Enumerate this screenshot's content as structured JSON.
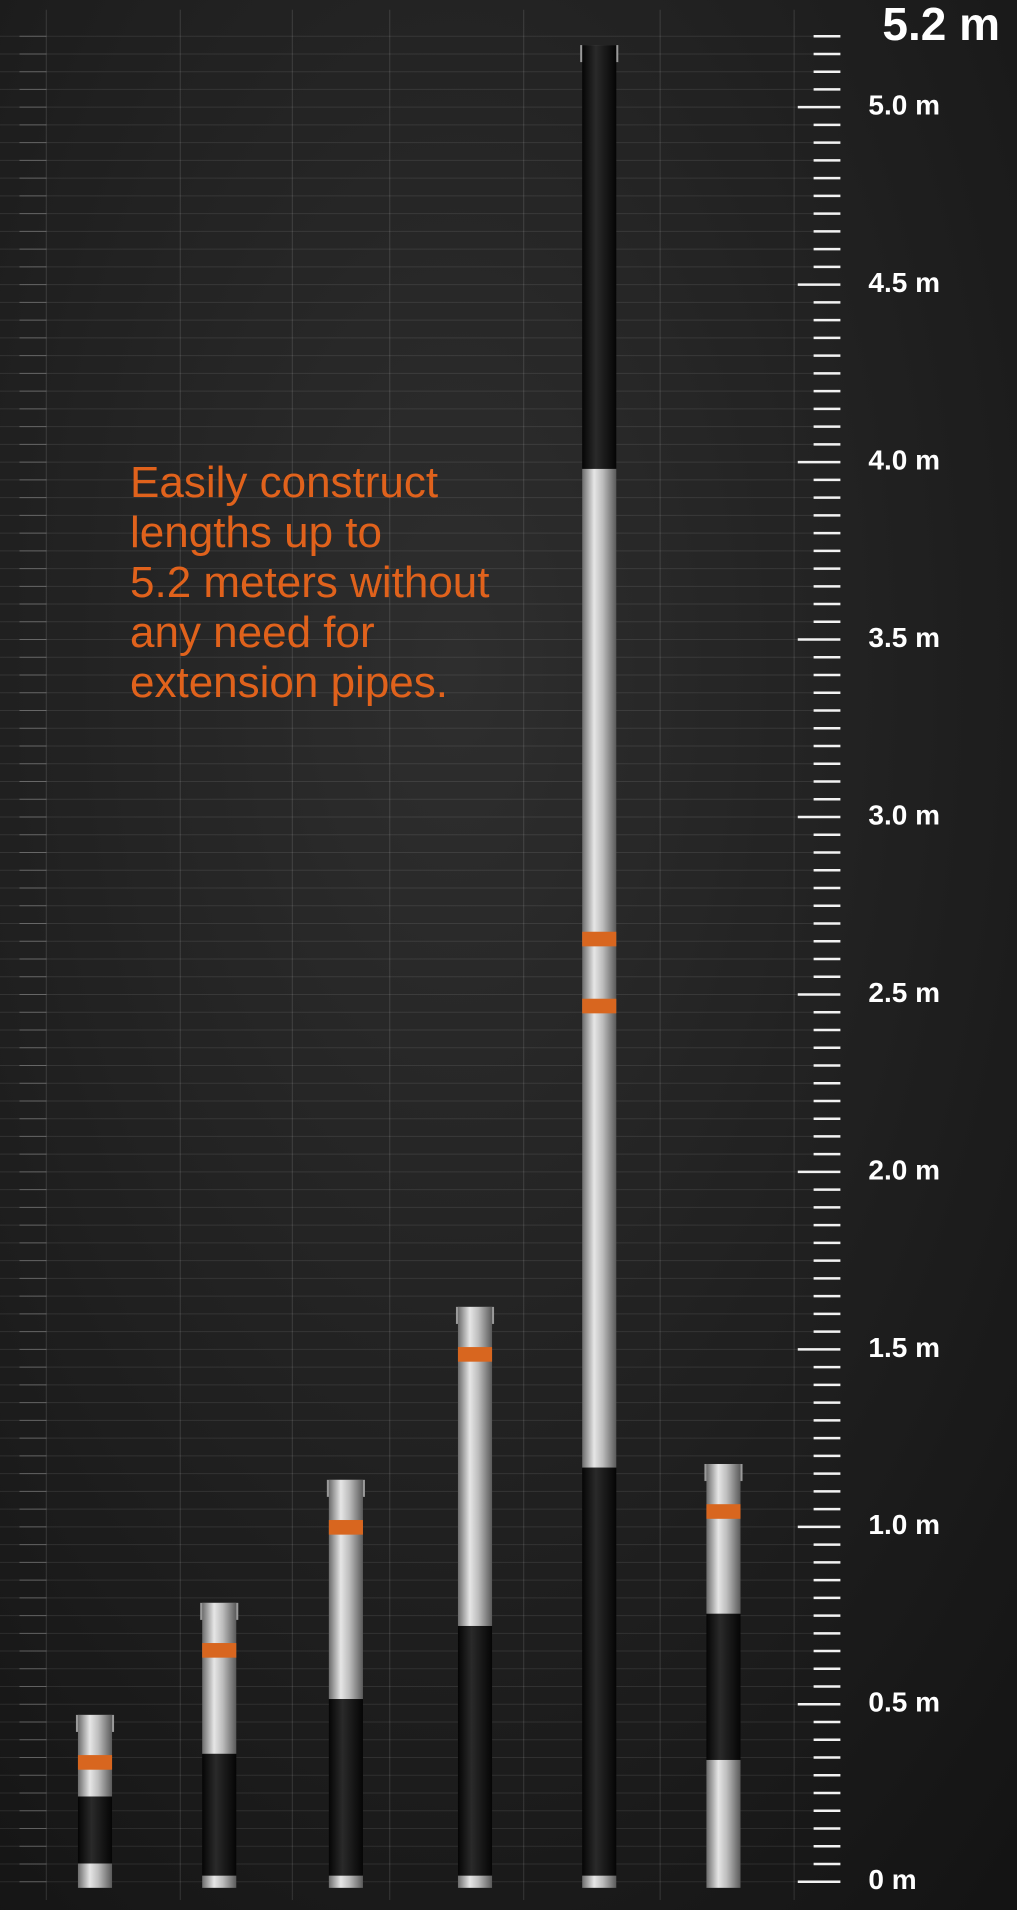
{
  "headline": {
    "lines": [
      "Easily construct",
      "lengths up to",
      "5.2 meters without",
      "any need for",
      "extension pipes."
    ]
  },
  "scale": {
    "max_label": "5.2 m",
    "labels": [
      "5.0 m",
      "4.5 m",
      "4.0 m",
      "3.5 m",
      "3.0 m",
      "2.5 m",
      "2.0 m",
      "1.5 m",
      "1.0 m",
      "0.5 m",
      "0 m"
    ]
  }
}
